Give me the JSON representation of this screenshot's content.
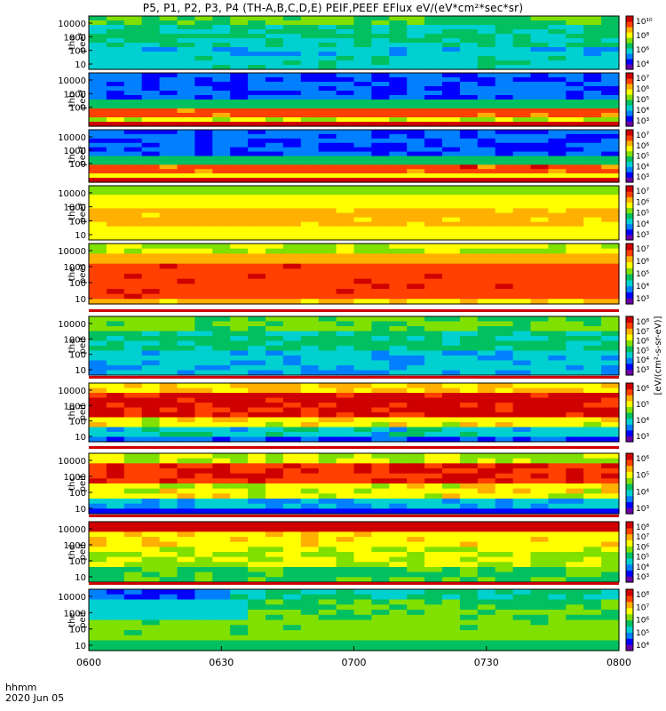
{
  "title": "P5, P1, P2, P3, P4 (TH-A,B,C,D,E) PEIF,PEEF EFlux eV/(eV*cm²*sec*sr)",
  "time_axis": {
    "label": "hhmm",
    "date": "2020 Jun 05",
    "ticks": [
      "0600",
      "0630",
      "0700",
      "0730",
      "0800"
    ]
  },
  "colorbar_unit_label": "[eV/(cm²-s-sr-eV)]",
  "chart_data": [
    {
      "type": "heatmap",
      "panel": "tha peef",
      "ylabel_1": "tha",
      "ylabel_2": "peef",
      "y_scale": "log",
      "y_ticks": [
        "10",
        "100",
        "1000",
        "10000"
      ],
      "cbar_ticks": [
        "10⁴",
        "10⁶",
        "10⁸",
        "10¹⁰"
      ],
      "x_range": [
        "0600",
        "0800"
      ]
    },
    {
      "type": "heatmap",
      "panel": "thb peef",
      "ylabel_1": "thb",
      "ylabel_2": "peef",
      "y_scale": "log",
      "y_ticks": [
        "100",
        "1000",
        "10000"
      ],
      "cbar_ticks": [
        "10³",
        "10⁴",
        "10⁵",
        "10⁶",
        "10⁷"
      ],
      "x_range": [
        "0600",
        "0800"
      ]
    },
    {
      "type": "heatmap",
      "panel": "thc peef",
      "ylabel_1": "thc",
      "ylabel_2": "peef",
      "y_scale": "log",
      "y_ticks": [
        "100",
        "1000",
        "10000"
      ],
      "cbar_ticks": [
        "10³",
        "10⁴",
        "10⁵",
        "10⁶",
        "10⁷"
      ],
      "x_range": [
        "0600",
        "0800"
      ]
    },
    {
      "type": "heatmap",
      "panel": "thd peef",
      "ylabel_1": "thd",
      "ylabel_2": "peef",
      "y_scale": "log",
      "y_ticks": [
        "10",
        "100",
        "1000",
        "10000"
      ],
      "cbar_ticks": [
        "10³",
        "10⁴",
        "10⁵",
        "10⁶",
        "10⁷"
      ],
      "x_range": [
        "0600",
        "0800"
      ]
    },
    {
      "type": "heatmap",
      "panel": "the peef",
      "ylabel_1": "the",
      "ylabel_2": "peef",
      "y_scale": "log",
      "y_ticks": [
        "10",
        "100",
        "1000",
        "10000"
      ],
      "cbar_ticks": [
        "10³",
        "10⁴",
        "10⁵",
        "10⁶",
        "10⁷"
      ],
      "x_range": [
        "0600",
        "0800"
      ]
    },
    {
      "type": "heatmap",
      "panel": "tha peif",
      "ylabel_1": "tha",
      "ylabel_2": "peif",
      "y_scale": "log",
      "y_ticks": [
        "10",
        "100",
        "1000",
        "10000"
      ],
      "cbar_ticks": [
        "10³",
        "10⁴",
        "10⁵",
        "10⁶",
        "10⁷",
        "10⁸"
      ],
      "x_range": [
        "0600",
        "0800"
      ]
    },
    {
      "type": "heatmap",
      "panel": "thb peif",
      "ylabel_1": "thb",
      "ylabel_2": "peif",
      "y_scale": "log",
      "y_ticks": [
        "10",
        "100",
        "1000",
        "10000"
      ],
      "cbar_ticks": [
        "10³",
        "10⁴",
        "10⁵",
        "10⁶"
      ],
      "x_range": [
        "0600",
        "0800"
      ]
    },
    {
      "type": "heatmap",
      "panel": "thc peif",
      "ylabel_1": "thc",
      "ylabel_2": "peif",
      "y_scale": "log",
      "y_ticks": [
        "10",
        "100",
        "1000",
        "10000"
      ],
      "cbar_ticks": [
        "10³",
        "10⁴",
        "10⁵",
        "10⁶"
      ],
      "x_range": [
        "0600",
        "0800"
      ]
    },
    {
      "type": "heatmap",
      "panel": "thd peif",
      "ylabel_1": "thd",
      "ylabel_2": "peif",
      "y_scale": "log",
      "y_ticks": [
        "10",
        "100",
        "1000",
        "10000"
      ],
      "cbar_ticks": [
        "10³",
        "10⁴",
        "10⁵",
        "10⁶",
        "10⁷",
        "10⁸"
      ],
      "x_range": [
        "0600",
        "0800"
      ]
    },
    {
      "type": "heatmap",
      "panel": "the peif",
      "ylabel_1": "the",
      "ylabel_2": "peif",
      "y_scale": "log",
      "y_ticks": [
        "10",
        "100",
        "1000",
        "10000"
      ],
      "cbar_ticks": [
        "10⁴",
        "10⁵",
        "10⁶",
        "10⁷",
        "10⁸"
      ],
      "x_range": [
        "0600",
        "0800"
      ]
    }
  ],
  "colors": {
    "scale": [
      "#6a00a8",
      "#0000ff",
      "#0080ff",
      "#00d0d0",
      "#00c060",
      "#80e000",
      "#ffff00",
      "#ffb000",
      "#ff4000",
      "#d00000"
    ],
    "low_band": "#cc0000",
    "high_band": "#cc0000"
  }
}
